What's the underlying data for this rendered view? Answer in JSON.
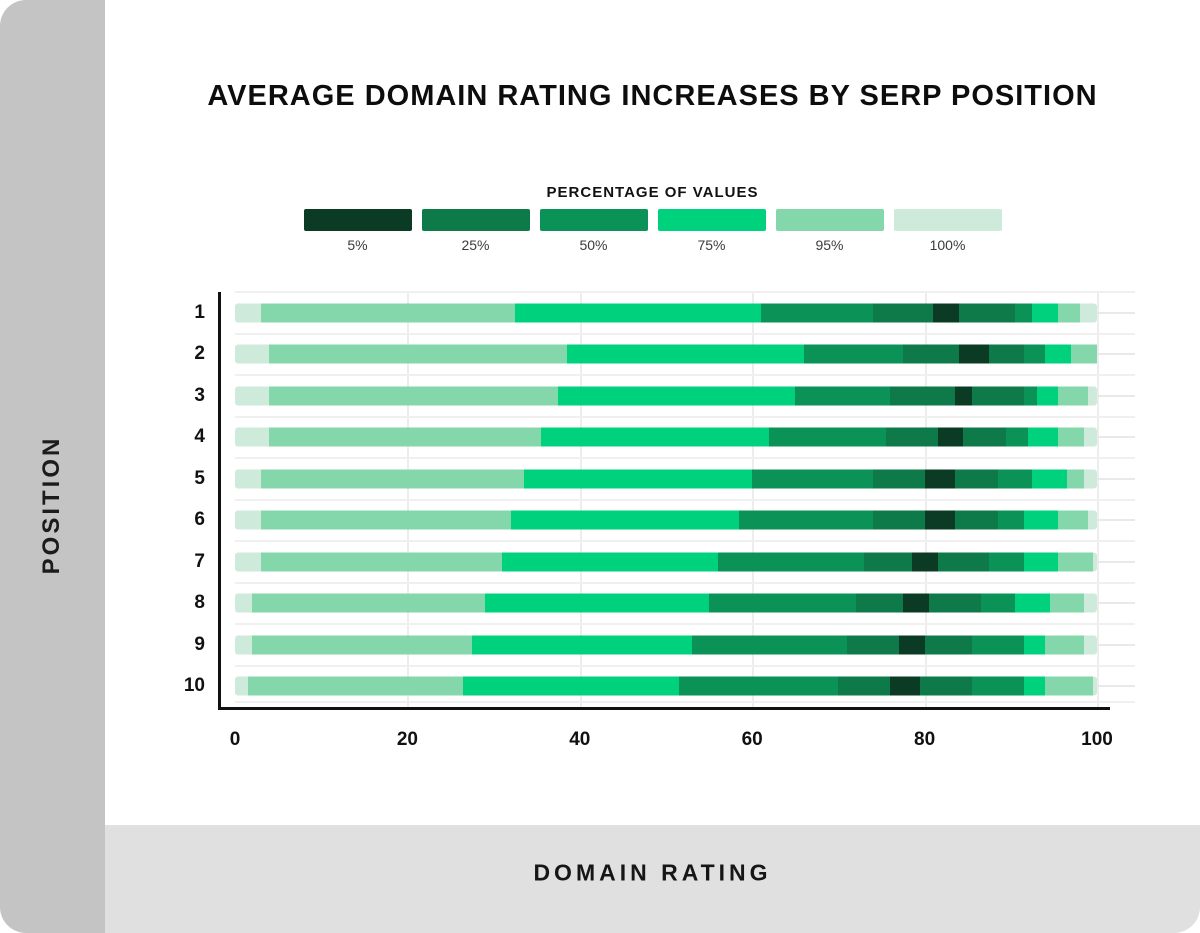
{
  "header": {
    "title": "AVERAGE DOMAIN RATING INCREASES BY SERP POSITION"
  },
  "sidebar": {
    "label": "POSITION"
  },
  "footer": {
    "label": "DOMAIN RATING"
  },
  "legend": {
    "title": "PERCENTAGE OF VALUES",
    "items": [
      {
        "label": "5%",
        "color": "#0c3b25"
      },
      {
        "label": "25%",
        "color": "#0f7a49"
      },
      {
        "label": "50%",
        "color": "#0b9256"
      },
      {
        "label": "75%",
        "color": "#00d17d"
      },
      {
        "label": "95%",
        "color": "#84d7ab"
      },
      {
        "label": "100%",
        "color": "#cdeadb"
      }
    ]
  },
  "colors": {
    "sidebar_gray": "#c4c4c4",
    "footer_gray": "#e0e0e0",
    "grid": "#f0f0f0",
    "axis": "#111111"
  },
  "chart_data": {
    "type": "bar",
    "variant": "horizontal nested percentile range bars (darker = narrower central range of values)",
    "title": "AVERAGE DOMAIN RATING INCREASES BY SERP POSITION",
    "xlabel": "DOMAIN RATING",
    "ylabel": "POSITION",
    "xlim": [
      0,
      100
    ],
    "x_ticks": [
      0,
      20,
      40,
      60,
      80,
      100
    ],
    "grid": true,
    "legend_position": "top",
    "categories": [
      "1",
      "2",
      "3",
      "4",
      "5",
      "6",
      "7",
      "8",
      "9",
      "10"
    ],
    "series": [
      {
        "name": "100%",
        "color": "#cdeadb",
        "ranges": [
          [
            0,
            100
          ],
          [
            0,
            100
          ],
          [
            0,
            100
          ],
          [
            0,
            100
          ],
          [
            0,
            100
          ],
          [
            0,
            100
          ],
          [
            0,
            100
          ],
          [
            0,
            100
          ],
          [
            0,
            100
          ],
          [
            0,
            100
          ]
        ]
      },
      {
        "name": "95%",
        "color": "#84d7ab",
        "ranges": [
          [
            3,
            98
          ],
          [
            4,
            100
          ],
          [
            4,
            99
          ],
          [
            4,
            98.5
          ],
          [
            3,
            98.5
          ],
          [
            3,
            99
          ],
          [
            3,
            99.5
          ],
          [
            2,
            98.5
          ],
          [
            2,
            98.5
          ],
          [
            1.5,
            99.5
          ]
        ]
      },
      {
        "name": "75%",
        "color": "#00d17d",
        "ranges": [
          [
            32.5,
            95.5
          ],
          [
            38.5,
            97
          ],
          [
            37.5,
            95.5
          ],
          [
            35.5,
            95.5
          ],
          [
            33.5,
            96.5
          ],
          [
            32,
            95.5
          ],
          [
            31,
            95.5
          ],
          [
            29,
            94.5
          ],
          [
            27.5,
            94
          ],
          [
            26.5,
            94
          ]
        ]
      },
      {
        "name": "50%",
        "color": "#0b9256",
        "ranges": [
          [
            61,
            92.5
          ],
          [
            66,
            94
          ],
          [
            65,
            93
          ],
          [
            62,
            92
          ],
          [
            60,
            92.5
          ],
          [
            58.5,
            91.5
          ],
          [
            56,
            91.5
          ],
          [
            55,
            90.5
          ],
          [
            53,
            91.5
          ],
          [
            51.5,
            91.5
          ]
        ]
      },
      {
        "name": "25%",
        "color": "#0f7a49",
        "ranges": [
          [
            74,
            90.5
          ],
          [
            77.5,
            91.5
          ],
          [
            76,
            91.5
          ],
          [
            75.5,
            89.5
          ],
          [
            74,
            88.5
          ],
          [
            74,
            88.5
          ],
          [
            73,
            87.5
          ],
          [
            72,
            86.5
          ],
          [
            71,
            85.5
          ],
          [
            70,
            85.5
          ]
        ]
      },
      {
        "name": "5%",
        "color": "#0c3b25",
        "ranges": [
          [
            81,
            84
          ],
          [
            84,
            87.5
          ],
          [
            83.5,
            85.5
          ],
          [
            81.5,
            84.5
          ],
          [
            80,
            83.5
          ],
          [
            80,
            83.5
          ],
          [
            78.5,
            81.5
          ],
          [
            77.5,
            80.5
          ],
          [
            77,
            80
          ],
          [
            76,
            79.5
          ]
        ]
      }
    ]
  }
}
